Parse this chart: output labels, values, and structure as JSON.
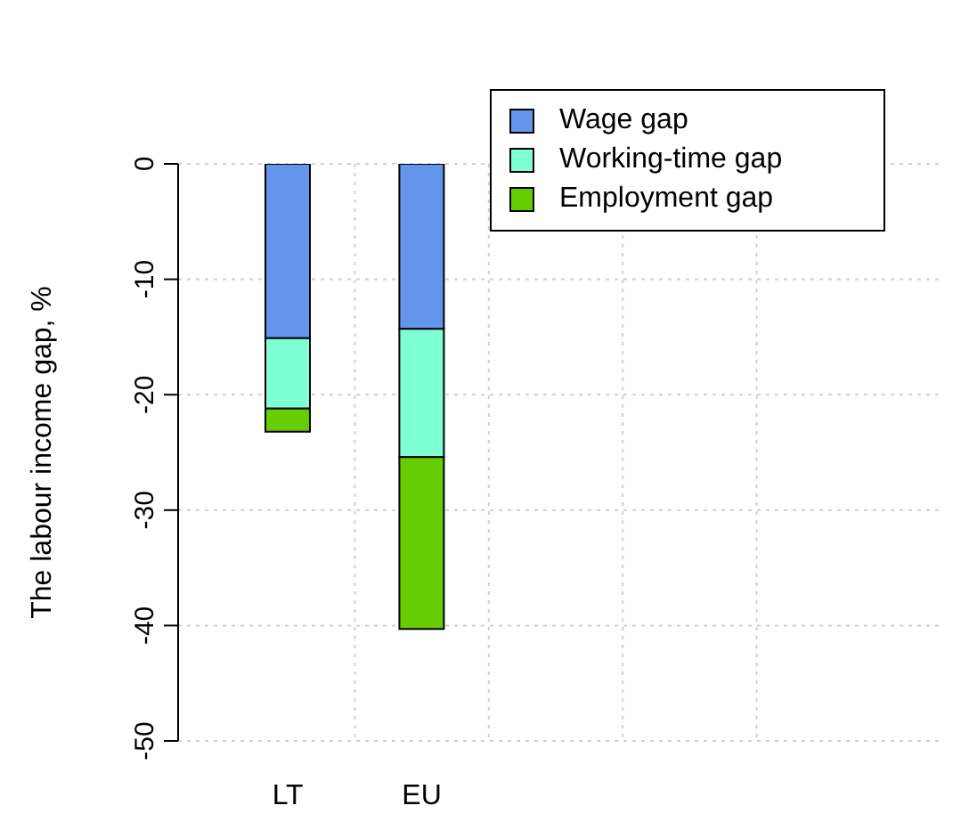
{
  "chart_data": {
    "type": "bar",
    "stacked": true,
    "ylabel": "The labour income gap, %",
    "categories": [
      "LT",
      "EU",
      null,
      null,
      null
    ],
    "series": [
      {
        "name": "Wage gap",
        "color": "#6495ed",
        "values": [
          -15.1,
          -14.3,
          null,
          null,
          null
        ]
      },
      {
        "name": "Working-time gap",
        "color": "#7fffd4",
        "values": [
          -6.1,
          -11.1,
          null,
          null,
          null
        ]
      },
      {
        "name": "Employment gap",
        "color": "#66cd00",
        "values": [
          -2.0,
          -14.9,
          null,
          null,
          null
        ]
      }
    ],
    "ylim": [
      -50,
      0
    ],
    "yticks": [
      -50,
      -40,
      -30,
      -20,
      -10,
      0
    ],
    "grid": true,
    "legend": "top right"
  }
}
